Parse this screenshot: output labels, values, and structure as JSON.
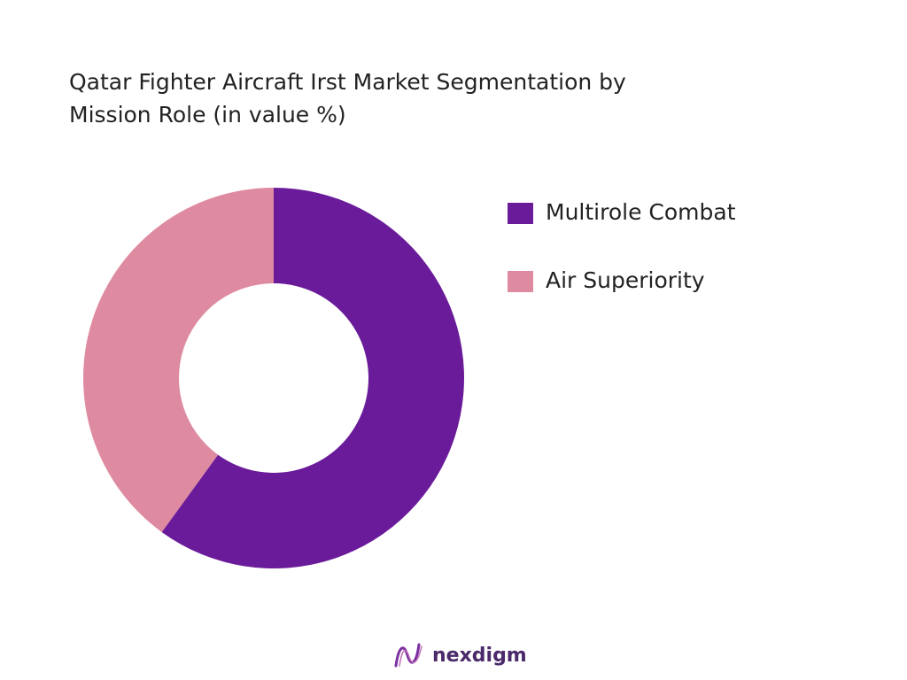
{
  "chart_data": {
    "type": "donut",
    "title": "Qatar Fighter Aircraft Irst Market Segmentation by Mission Role (in value %)",
    "categories": [
      "Multirole Combat",
      "Air Superiority"
    ],
    "values": [
      60,
      40
    ],
    "colors": [
      "#6a1b9a",
      "#de8aa0"
    ],
    "legend": "right"
  },
  "footer": {
    "brand": "nexdigm"
  }
}
